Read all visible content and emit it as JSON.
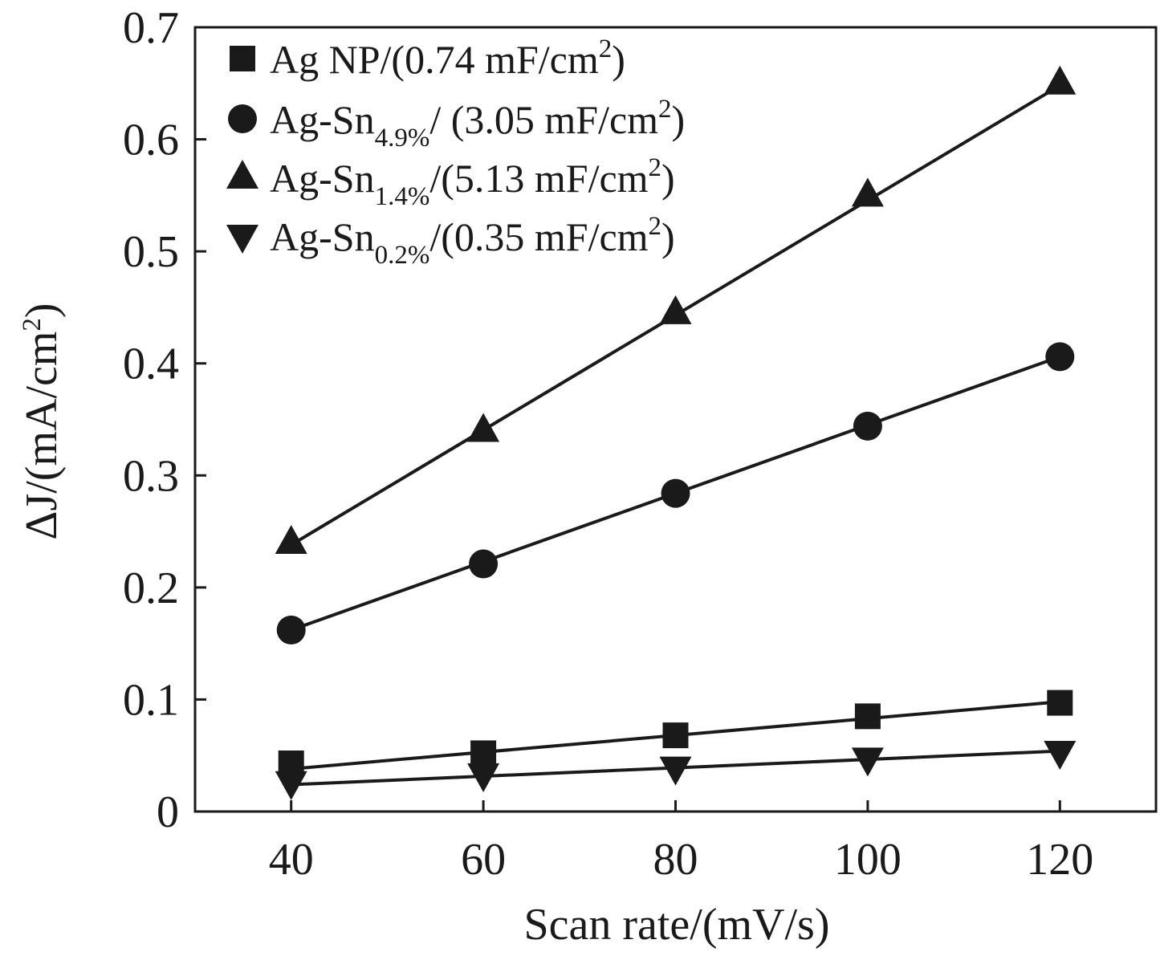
{
  "chart_data": {
    "type": "line",
    "xlabel": "Scan rate/(mV/s)",
    "ylabel": {
      "main": "ΔJ/(mA/cm",
      "sup": "2",
      "close": ")"
    },
    "xlim": [
      30,
      130
    ],
    "ylim": [
      0,
      0.7
    ],
    "xticks": [
      40,
      60,
      80,
      100,
      120
    ],
    "xtick_labels": [
      "40",
      "60",
      "80",
      "100",
      "120"
    ],
    "yticks": [
      0,
      0.1,
      0.2,
      0.3,
      0.4,
      0.5,
      0.6,
      0.7
    ],
    "ytick_labels": [
      "0",
      "0.1",
      "0.2",
      "0.3",
      "0.4",
      "0.5",
      "0.6",
      "0.7"
    ],
    "grid": false,
    "legend_position": "top-left",
    "x": [
      40,
      60,
      80,
      100,
      120
    ],
    "series": [
      {
        "marker": "square",
        "legend": {
          "prefix": "Ag NP/(0.74 mF/cm",
          "sub": "",
          "mid": "",
          "sup": "2",
          "suffix": ")"
        },
        "values": [
          0.043,
          0.052,
          0.068,
          0.085,
          0.097
        ],
        "fit": [
          0.038,
          0.098
        ]
      },
      {
        "marker": "circle",
        "legend": {
          "prefix": "Ag-Sn",
          "sub": "4.9%",
          "mid": "/ (3.05 mF/cm",
          "sup": "2",
          "suffix": ")"
        },
        "values": [
          0.162,
          0.221,
          0.284,
          0.344,
          0.406
        ],
        "fit": [
          0.162,
          0.406
        ]
      },
      {
        "marker": "triangle-up",
        "legend": {
          "prefix": "Ag-Sn",
          "sub": "1.4%",
          "mid": "/(5.13 mF/cm",
          "sup": "2",
          "suffix": ")"
        },
        "values": [
          0.24,
          0.34,
          0.445,
          0.55,
          0.65
        ],
        "fit": [
          0.238,
          0.648
        ]
      },
      {
        "marker": "triangle-down",
        "legend": {
          "prefix": "Ag-Sn",
          "sub": "0.2%",
          "mid": "/(0.35 mF/cm",
          "sup": "2",
          "suffix": ")"
        },
        "values": [
          0.026,
          0.033,
          0.039,
          0.047,
          0.053
        ],
        "fit": [
          0.024,
          0.054
        ]
      }
    ]
  }
}
